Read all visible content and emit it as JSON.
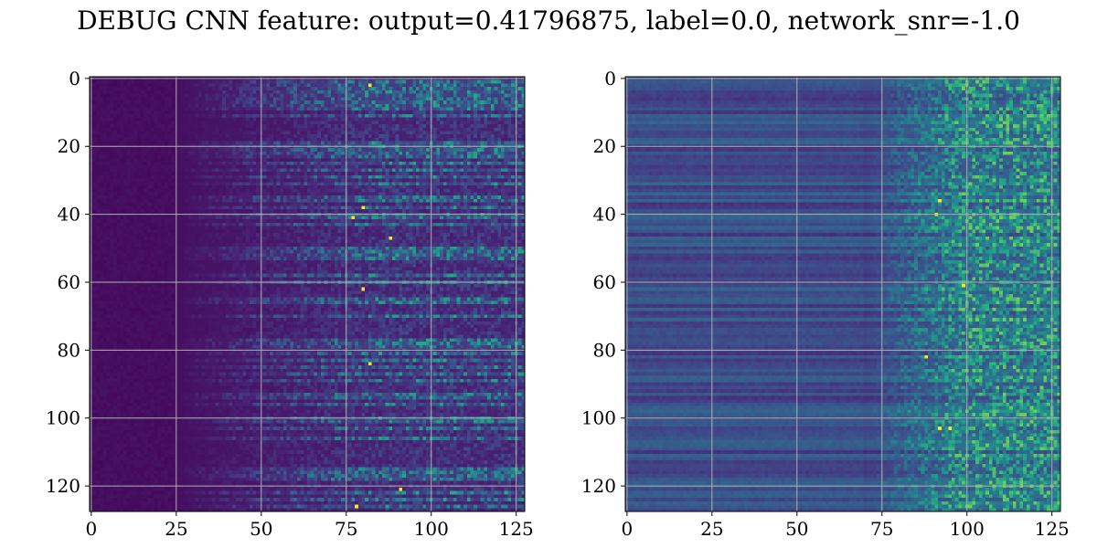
{
  "figure": {
    "title": "DEBUG CNN feature: output=0.41796875, label=0.0, network_snr=-1.0"
  },
  "chart_data": [
    {
      "type": "heatmap",
      "title": "",
      "xlabel": "",
      "ylabel": "",
      "colormap": "viridis",
      "grid": true,
      "x_range": [
        -0.5,
        127.5
      ],
      "y_range": [
        127.5,
        -0.5
      ],
      "x_ticks": [
        0,
        25,
        50,
        75,
        100,
        125
      ],
      "y_ticks": [
        0,
        20,
        40,
        60,
        80,
        100,
        120
      ],
      "x_tick_labels": [
        "0",
        "25",
        "50",
        "75",
        "100",
        "125"
      ],
      "y_tick_labels": [
        "0",
        "20",
        "40",
        "60",
        "80",
        "100",
        "120"
      ],
      "matrix_size": [
        128,
        128
      ],
      "pattern": "dark (near-zero) columns 0-25, activation rising with column index; bright horizontal streaks from ~col 40 onward; brightest pixels near cols 75-95",
      "hotspots": [
        {
          "row": 2,
          "col": 82
        },
        {
          "row": 38,
          "col": 80
        },
        {
          "row": 41,
          "col": 77
        },
        {
          "row": 47,
          "col": 88
        },
        {
          "row": 62,
          "col": 80
        },
        {
          "row": 84,
          "col": 82
        },
        {
          "row": 121,
          "col": 91
        },
        {
          "row": 126,
          "col": 78
        }
      ]
    },
    {
      "type": "heatmap",
      "title": "",
      "xlabel": "",
      "ylabel": "",
      "colormap": "viridis",
      "grid": true,
      "x_range": [
        -0.5,
        127.5
      ],
      "y_range": [
        127.5,
        -0.5
      ],
      "x_ticks": [
        0,
        25,
        50,
        75,
        100,
        125
      ],
      "y_ticks": [
        0,
        20,
        40,
        60,
        80,
        100,
        120
      ],
      "x_tick_labels": [
        "0",
        "25",
        "50",
        "75",
        "100",
        "125"
      ],
      "y_tick_labels": [
        "0",
        "20",
        "40",
        "60",
        "80",
        "100",
        "120"
      ],
      "matrix_size": [
        128,
        128
      ],
      "pattern": "horizontal banded background across all columns, noisier/brighter values from ~col 75 onward",
      "hotspots": [
        {
          "row": 36,
          "col": 92
        },
        {
          "row": 40,
          "col": 91
        },
        {
          "row": 61,
          "col": 99
        },
        {
          "row": 82,
          "col": 88
        },
        {
          "row": 103,
          "col": 92
        },
        {
          "row": 103,
          "col": 95
        }
      ]
    }
  ]
}
